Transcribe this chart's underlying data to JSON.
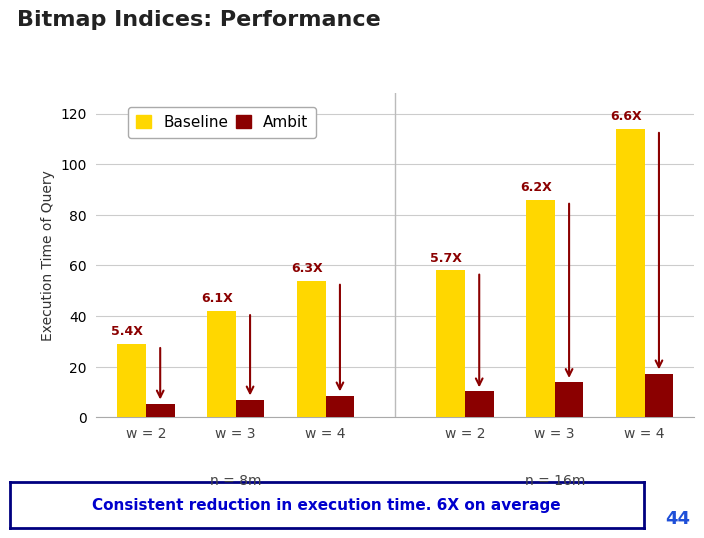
{
  "title": "Bitmap Indices: Performance",
  "ylabel": "Execution Time of Query",
  "groups": [
    "w = 2",
    "w = 3",
    "w = 4",
    "w = 2",
    "w = 3",
    "w = 4"
  ],
  "group_labels": [
    "n = 8m",
    "n = 16m"
  ],
  "baseline_values": [
    29,
    42,
    54,
    58,
    86,
    114
  ],
  "ambit_values": [
    5.4,
    7.0,
    8.6,
    10.2,
    13.9,
    17.3
  ],
  "speedups": [
    "5.4X",
    "6.1X",
    "6.3X",
    "5.7X",
    "6.2X",
    "6.6X"
  ],
  "baseline_color": "#FFD700",
  "ambit_color": "#8B0000",
  "speedup_color": "#8B0000",
  "arrow_color": "#8B0000",
  "ylim": [
    0,
    128
  ],
  "yticks": [
    0,
    20,
    40,
    60,
    80,
    100,
    120
  ],
  "background_color": "#FFFFFF",
  "subtitle_text": "Consistent reduction in execution time. 6X on average",
  "subtitle_color": "#0000CD",
  "subtitle_border_color": "#000080",
  "page_number": "44",
  "page_number_color": "#1E4FD8"
}
